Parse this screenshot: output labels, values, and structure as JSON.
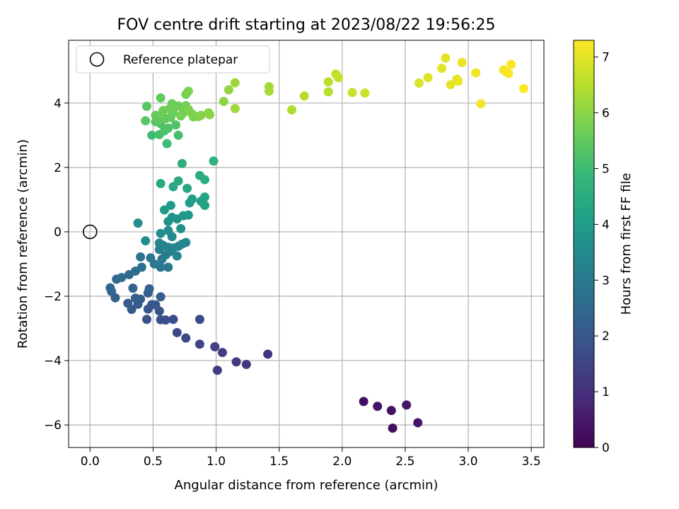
{
  "chart_data": {
    "type": "scatter",
    "title": "FOV centre drift starting at 2023/08/22 19:56:25",
    "xlabel": "Angular distance from reference (arcmin)",
    "ylabel": "Rotation from reference (arcmin)",
    "xlim": [
      -0.17,
      3.6
    ],
    "ylim": [
      -6.7,
      5.95
    ],
    "xticks": [
      0.0,
      0.5,
      1.0,
      1.5,
      2.0,
      2.5,
      3.0,
      3.5
    ],
    "xtick_labels": [
      "0.0",
      "0.5",
      "1.0",
      "1.5",
      "2.0",
      "2.5",
      "3.0",
      "3.5"
    ],
    "yticks": [
      -6,
      -4,
      -2,
      0,
      2,
      4
    ],
    "ytick_labels": [
      "−6",
      "−4",
      "−2",
      "0",
      "2",
      "4"
    ],
    "grid": true,
    "legend": {
      "placement": "top-left",
      "entries": [
        "Reference platepar"
      ]
    },
    "reference_point": {
      "x": 0,
      "y": 0,
      "marker": "open-circle",
      "label": "Reference platepar"
    },
    "colorbar": {
      "label": "Hours from first FF file",
      "range": [
        0,
        7.3
      ],
      "ticks": [
        0,
        1,
        2,
        3,
        4,
        5,
        6,
        7
      ],
      "tick_labels": [
        "0",
        "1",
        "2",
        "3",
        "4",
        "5",
        "6",
        "7"
      ],
      "colormap": "viridis",
      "colors": [
        "#440154",
        "#482878",
        "#3e4989",
        "#31688e",
        "#26828e",
        "#1f9e89",
        "#35b779",
        "#6ece58",
        "#b5de2b",
        "#fde725"
      ]
    },
    "points": [
      {
        "x": 2.17,
        "y": -5.27,
        "c": 0.3
      },
      {
        "x": 2.28,
        "y": -5.42,
        "c": 0.4
      },
      {
        "x": 2.39,
        "y": -5.55,
        "c": 0.35
      },
      {
        "x": 2.4,
        "y": -6.1,
        "c": 0.3
      },
      {
        "x": 2.51,
        "y": -5.38,
        "c": 0.45
      },
      {
        "x": 2.6,
        "y": -5.93,
        "c": 0.4
      },
      {
        "x": 1.41,
        "y": -3.8,
        "c": 1.1
      },
      {
        "x": 1.24,
        "y": -4.12,
        "c": 1.2
      },
      {
        "x": 1.16,
        "y": -4.04,
        "c": 1.25
      },
      {
        "x": 1.05,
        "y": -3.75,
        "c": 1.3
      },
      {
        "x": 1.01,
        "y": -4.3,
        "c": 1.3
      },
      {
        "x": 0.99,
        "y": -3.57,
        "c": 1.4
      },
      {
        "x": 0.87,
        "y": -3.49,
        "c": 1.5
      },
      {
        "x": 0.76,
        "y": -3.3,
        "c": 1.55
      },
      {
        "x": 0.69,
        "y": -3.13,
        "c": 1.6
      },
      {
        "x": 0.87,
        "y": -2.72,
        "c": 1.7
      },
      {
        "x": 0.66,
        "y": -2.72,
        "c": 1.75
      },
      {
        "x": 0.6,
        "y": -2.74,
        "c": 1.8
      },
      {
        "x": 0.56,
        "y": -2.73,
        "c": 1.8
      },
      {
        "x": 0.45,
        "y": -2.72,
        "c": 1.85
      },
      {
        "x": 0.55,
        "y": -2.46,
        "c": 1.9
      },
      {
        "x": 0.46,
        "y": -2.4,
        "c": 1.95
      },
      {
        "x": 0.49,
        "y": -2.26,
        "c": 2.0
      },
      {
        "x": 0.52,
        "y": -2.27,
        "c": 2.0
      },
      {
        "x": 0.38,
        "y": -2.25,
        "c": 2.05
      },
      {
        "x": 0.33,
        "y": -2.41,
        "c": 2.1
      },
      {
        "x": 0.3,
        "y": -2.22,
        "c": 2.1
      },
      {
        "x": 0.36,
        "y": -2.06,
        "c": 2.15
      },
      {
        "x": 0.4,
        "y": -2.09,
        "c": 2.15
      },
      {
        "x": 0.56,
        "y": -2.02,
        "c": 2.2
      },
      {
        "x": 0.46,
        "y": -1.9,
        "c": 2.2
      },
      {
        "x": 0.47,
        "y": -1.77,
        "c": 2.25
      },
      {
        "x": 0.34,
        "y": -1.75,
        "c": 2.3
      },
      {
        "x": 0.2,
        "y": -2.05,
        "c": 2.3
      },
      {
        "x": 0.17,
        "y": -1.85,
        "c": 2.35
      },
      {
        "x": 0.16,
        "y": -1.74,
        "c": 2.4
      },
      {
        "x": 0.21,
        "y": -1.47,
        "c": 2.5
      },
      {
        "x": 0.25,
        "y": -1.42,
        "c": 2.55
      },
      {
        "x": 0.31,
        "y": -1.33,
        "c": 2.6
      },
      {
        "x": 0.36,
        "y": -1.22,
        "c": 2.65
      },
      {
        "x": 0.41,
        "y": -1.1,
        "c": 2.7
      },
      {
        "x": 0.4,
        "y": -0.78,
        "c": 2.8
      },
      {
        "x": 0.48,
        "y": -0.81,
        "c": 2.85
      },
      {
        "x": 0.51,
        "y": -1.0,
        "c": 2.9
      },
      {
        "x": 0.56,
        "y": -1.1,
        "c": 2.95
      },
      {
        "x": 0.62,
        "y": -1.1,
        "c": 3.0
      },
      {
        "x": 0.57,
        "y": -0.85,
        "c": 3.0
      },
      {
        "x": 0.6,
        "y": -0.72,
        "c": 3.05
      },
      {
        "x": 0.63,
        "y": -0.62,
        "c": 3.1
      },
      {
        "x": 0.55,
        "y": -0.55,
        "c": 3.15
      },
      {
        "x": 0.58,
        "y": -0.42,
        "c": 3.2
      },
      {
        "x": 0.55,
        "y": -0.35,
        "c": 3.2
      },
      {
        "x": 0.62,
        "y": -0.48,
        "c": 3.25
      },
      {
        "x": 0.66,
        "y": -0.5,
        "c": 3.3
      },
      {
        "x": 0.7,
        "y": -0.45,
        "c": 3.3
      },
      {
        "x": 0.69,
        "y": -0.75,
        "c": 3.35
      },
      {
        "x": 0.73,
        "y": -0.38,
        "c": 3.4
      },
      {
        "x": 0.76,
        "y": -0.33,
        "c": 3.4
      },
      {
        "x": 0.65,
        "y": -0.15,
        "c": 3.45
      },
      {
        "x": 0.56,
        "y": -0.05,
        "c": 3.5
      },
      {
        "x": 0.44,
        "y": -0.28,
        "c": 3.5
      },
      {
        "x": 0.38,
        "y": 0.27,
        "c": 3.55
      },
      {
        "x": 0.62,
        "y": 0.04,
        "c": 3.6
      },
      {
        "x": 0.72,
        "y": 0.1,
        "c": 3.65
      },
      {
        "x": 0.62,
        "y": 0.32,
        "c": 3.7
      },
      {
        "x": 0.65,
        "y": 0.45,
        "c": 3.75
      },
      {
        "x": 0.69,
        "y": 0.4,
        "c": 3.8
      },
      {
        "x": 0.74,
        "y": 0.5,
        "c": 3.85
      },
      {
        "x": 0.78,
        "y": 0.52,
        "c": 3.9
      },
      {
        "x": 0.59,
        "y": 0.68,
        "c": 3.95
      },
      {
        "x": 0.64,
        "y": 0.82,
        "c": 4.0
      },
      {
        "x": 0.79,
        "y": 0.9,
        "c": 4.05
      },
      {
        "x": 0.81,
        "y": 1.02,
        "c": 4.1
      },
      {
        "x": 0.88,
        "y": 0.95,
        "c": 4.15
      },
      {
        "x": 0.91,
        "y": 0.82,
        "c": 4.2
      },
      {
        "x": 0.91,
        "y": 1.08,
        "c": 4.25
      },
      {
        "x": 0.77,
        "y": 1.35,
        "c": 4.3
      },
      {
        "x": 0.66,
        "y": 1.4,
        "c": 4.35
      },
      {
        "x": 0.7,
        "y": 1.58,
        "c": 4.4
      },
      {
        "x": 0.56,
        "y": 1.5,
        "c": 4.45
      },
      {
        "x": 0.87,
        "y": 1.75,
        "c": 4.5
      },
      {
        "x": 0.91,
        "y": 1.62,
        "c": 4.55
      },
      {
        "x": 0.73,
        "y": 2.12,
        "c": 4.6
      },
      {
        "x": 0.98,
        "y": 2.2,
        "c": 4.7
      },
      {
        "x": 0.61,
        "y": 2.74,
        "c": 5.0
      },
      {
        "x": 0.49,
        "y": 3.0,
        "c": 5.05
      },
      {
        "x": 0.55,
        "y": 3.02,
        "c": 5.1
      },
      {
        "x": 0.7,
        "y": 3.0,
        "c": 5.15
      },
      {
        "x": 0.59,
        "y": 3.14,
        "c": 5.2
      },
      {
        "x": 0.62,
        "y": 3.22,
        "c": 5.25
      },
      {
        "x": 0.68,
        "y": 3.32,
        "c": 5.3
      },
      {
        "x": 0.56,
        "y": 3.36,
        "c": 5.3
      },
      {
        "x": 0.52,
        "y": 3.42,
        "c": 5.35
      },
      {
        "x": 0.44,
        "y": 3.45,
        "c": 5.4
      },
      {
        "x": 0.55,
        "y": 3.5,
        "c": 5.45
      },
      {
        "x": 0.6,
        "y": 3.52,
        "c": 5.5
      },
      {
        "x": 0.64,
        "y": 3.55,
        "c": 5.5
      },
      {
        "x": 0.52,
        "y": 3.62,
        "c": 5.55
      },
      {
        "x": 0.57,
        "y": 3.66,
        "c": 5.6
      },
      {
        "x": 0.66,
        "y": 3.7,
        "c": 5.6
      },
      {
        "x": 0.58,
        "y": 3.77,
        "c": 5.65
      },
      {
        "x": 0.63,
        "y": 3.82,
        "c": 5.7
      },
      {
        "x": 0.67,
        "y": 3.87,
        "c": 5.7
      },
      {
        "x": 0.72,
        "y": 3.6,
        "c": 5.75
      },
      {
        "x": 0.74,
        "y": 3.7,
        "c": 5.75
      },
      {
        "x": 0.78,
        "y": 3.8,
        "c": 5.8
      },
      {
        "x": 0.81,
        "y": 3.66,
        "c": 5.85
      },
      {
        "x": 0.82,
        "y": 3.57,
        "c": 5.85
      },
      {
        "x": 0.86,
        "y": 3.58,
        "c": 5.9
      },
      {
        "x": 0.88,
        "y": 3.62,
        "c": 5.95
      },
      {
        "x": 0.94,
        "y": 3.7,
        "c": 5.95
      },
      {
        "x": 0.95,
        "y": 3.64,
        "c": 6.0
      },
      {
        "x": 0.65,
        "y": 3.98,
        "c": 5.6
      },
      {
        "x": 0.7,
        "y": 3.91,
        "c": 5.65
      },
      {
        "x": 0.76,
        "y": 3.92,
        "c": 5.7
      },
      {
        "x": 0.45,
        "y": 3.9,
        "c": 5.4
      },
      {
        "x": 0.56,
        "y": 4.16,
        "c": 5.5
      },
      {
        "x": 0.76,
        "y": 4.27,
        "c": 5.8
      },
      {
        "x": 0.78,
        "y": 4.37,
        "c": 5.85
      },
      {
        "x": 1.06,
        "y": 4.05,
        "c": 6.0
      },
      {
        "x": 1.1,
        "y": 4.41,
        "c": 6.1
      },
      {
        "x": 1.15,
        "y": 4.63,
        "c": 6.2
      },
      {
        "x": 1.15,
        "y": 3.83,
        "c": 6.25
      },
      {
        "x": 1.42,
        "y": 4.51,
        "c": 6.3
      },
      {
        "x": 1.42,
        "y": 4.37,
        "c": 6.3
      },
      {
        "x": 1.6,
        "y": 3.79,
        "c": 6.4
      },
      {
        "x": 1.7,
        "y": 4.22,
        "c": 6.45
      },
      {
        "x": 1.89,
        "y": 4.35,
        "c": 6.5
      },
      {
        "x": 1.89,
        "y": 4.66,
        "c": 6.55
      },
      {
        "x": 1.95,
        "y": 4.9,
        "c": 6.6
      },
      {
        "x": 1.97,
        "y": 4.79,
        "c": 6.65
      },
      {
        "x": 2.08,
        "y": 4.33,
        "c": 6.7
      },
      {
        "x": 2.18,
        "y": 4.31,
        "c": 6.75
      },
      {
        "x": 2.61,
        "y": 4.62,
        "c": 6.9
      },
      {
        "x": 2.68,
        "y": 4.79,
        "c": 6.95
      },
      {
        "x": 2.79,
        "y": 5.08,
        "c": 7.0
      },
      {
        "x": 2.82,
        "y": 5.4,
        "c": 7.0
      },
      {
        "x": 2.86,
        "y": 4.57,
        "c": 7.05
      },
      {
        "x": 2.91,
        "y": 4.74,
        "c": 7.05
      },
      {
        "x": 2.92,
        "y": 4.68,
        "c": 7.1
      },
      {
        "x": 2.95,
        "y": 5.26,
        "c": 7.1
      },
      {
        "x": 3.06,
        "y": 4.94,
        "c": 7.15
      },
      {
        "x": 3.1,
        "y": 3.98,
        "c": 7.15
      },
      {
        "x": 3.28,
        "y": 5.03,
        "c": 7.2
      },
      {
        "x": 3.3,
        "y": 4.97,
        "c": 7.2
      },
      {
        "x": 3.32,
        "y": 4.92,
        "c": 7.25
      },
      {
        "x": 3.34,
        "y": 5.2,
        "c": 7.25
      },
      {
        "x": 3.44,
        "y": 4.45,
        "c": 7.3
      }
    ]
  }
}
